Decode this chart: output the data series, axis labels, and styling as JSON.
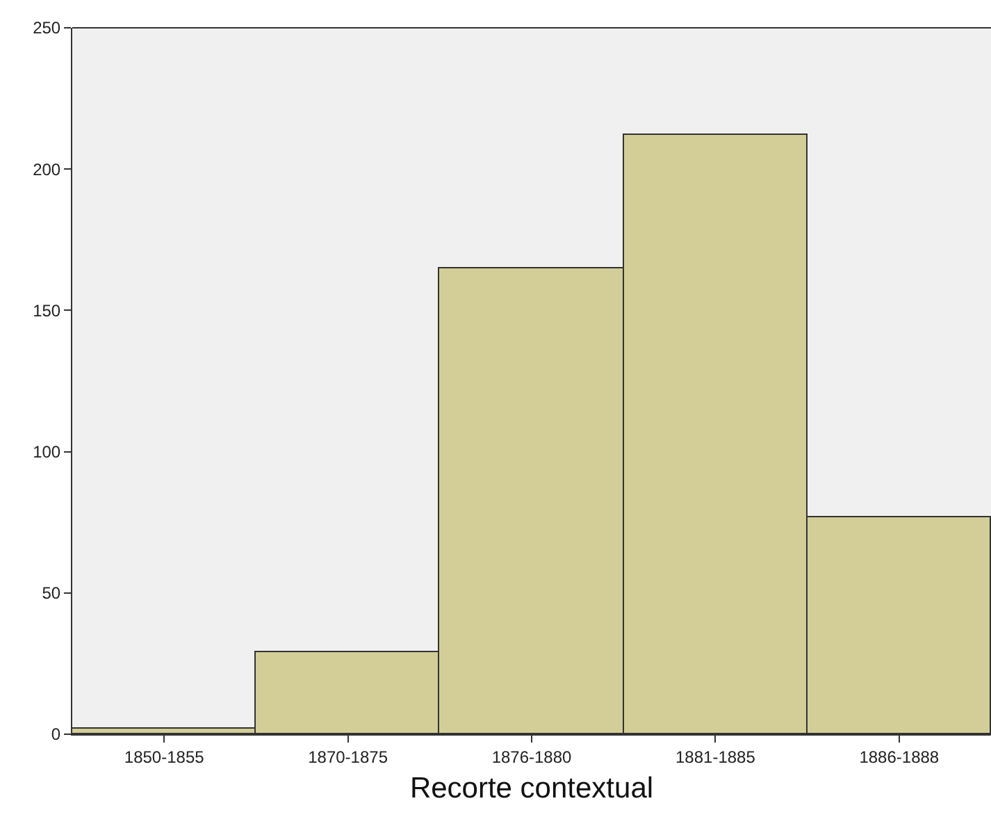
{
  "chart_data": {
    "type": "bar",
    "xlabel": "Recorte contextual",
    "categories": [
      "1850-1855",
      "1870-1875",
      "1876-1880",
      "1881-1885",
      "1886-1888"
    ],
    "values": [
      2,
      29,
      165,
      212,
      77
    ],
    "color": "#d3ce97",
    "ylim": [
      0,
      250
    ],
    "yticks": [
      0,
      50,
      100,
      150,
      200,
      250
    ]
  }
}
